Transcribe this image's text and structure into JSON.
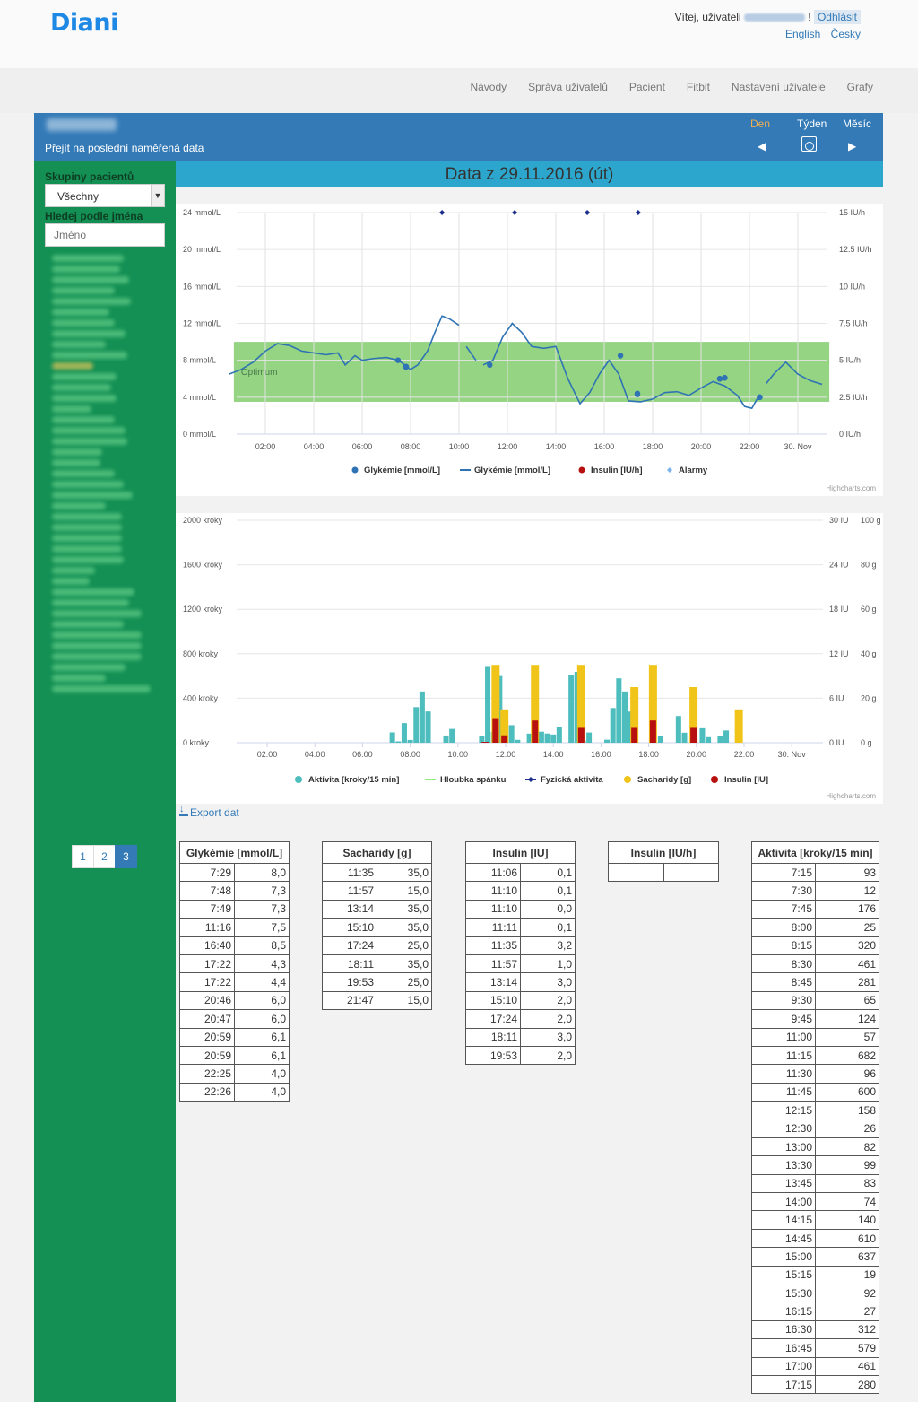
{
  "header": {
    "logo": "Diani",
    "welcome_prefix": "Vítej, uživateli",
    "welcome_suffix": "!",
    "logout": "Odhlásit",
    "lang_en": "English",
    "lang_cz": "Česky"
  },
  "nav": {
    "items": [
      "Návody",
      "Správa uživatelů",
      "Pacient",
      "Fitbit",
      "Nastavení uživatele",
      "Grafy"
    ]
  },
  "patient_bar": {
    "last_data_link": "Přejít na poslední naměřená data",
    "period_day": "Den",
    "period_week": "Týden",
    "period_month": "Měsíc",
    "prev_icon": "chevron-left-icon",
    "next_icon": "chevron-right-icon",
    "calendar_icon": "calendar-icon"
  },
  "sidebar": {
    "groups_label": "Skupiny pacientů",
    "groups_selected": "Všechny",
    "search_label": "Hledej podle jména",
    "search_placeholder": "Jméno",
    "pagination": [
      "1",
      "2",
      "3"
    ],
    "current_page": "3"
  },
  "main": {
    "date_title": "Data z 29.11.2016 (út)",
    "export_label": "Export dat",
    "credits": "Highcharts.com"
  },
  "chart_data": [
    {
      "type": "line",
      "x_ticks": [
        "02:00",
        "04:00",
        "06:00",
        "08:00",
        "10:00",
        "12:00",
        "14:00",
        "16:00",
        "18:00",
        "20:00",
        "22:00",
        "30. Nov"
      ],
      "y_left_ticks": [
        "0 mmol/L",
        "4 mmol/L",
        "8 mmol/L",
        "12 mmol/L",
        "16 mmol/L",
        "20 mmol/L",
        "24 mmol/L"
      ],
      "y_right_ticks": [
        "0 IU/h",
        "2.5 IU/h",
        "5 IU/h",
        "7.5 IU/h",
        "10 IU/h",
        "12.5 IU/h",
        "15 IU/h"
      ],
      "ylim_left": [
        0,
        24
      ],
      "ylim_right": [
        0,
        15
      ],
      "band": {
        "label": "Optimum",
        "from": 3.5,
        "to": 10,
        "color": "#8ed27c"
      },
      "legend": [
        "Glykémie [mmol/L]",
        "Glykémie [mmol/L]",
        "Insulin [IU/h]",
        "Alarmy"
      ],
      "series": [
        {
          "name": "Glykémie [mmol/L]",
          "kind": "points",
          "color": "#2f73b4",
          "x": [
            7.48,
            7.8,
            7.82,
            11.27,
            16.67,
            17.37,
            17.37,
            20.77,
            20.78,
            20.98,
            20.98,
            22.42,
            22.43
          ],
          "y": [
            8.0,
            7.3,
            7.3,
            7.5,
            8.5,
            4.3,
            4.4,
            6.0,
            6.0,
            6.1,
            6.1,
            4.0,
            4.0
          ]
        },
        {
          "name": "Glykémie [mmol/L]",
          "kind": "line",
          "color": "#2f73b4",
          "segments": [
            {
              "x": [
                0.5,
                1,
                1.5,
                2,
                2.5,
                3,
                3.5,
                4,
                4.5,
                5,
                5.3,
                5.7,
                6,
                6.5,
                7,
                7.5,
                8,
                8.3,
                8.7,
                9,
                9.3,
                9.6,
                10
              ],
              "y": [
                6.5,
                7.0,
                7.8,
                9.0,
                9.8,
                9.6,
                9.0,
                8.8,
                8.6,
                8.8,
                7.5,
                8.5,
                8.0,
                8.2,
                8.3,
                8.0,
                7.0,
                7.5,
                9.0,
                11.0,
                12.8,
                12.5,
                11.8
              ]
            },
            {
              "x": [
                10.3,
                10.7
              ],
              "y": [
                9.5,
                8.0
              ]
            },
            {
              "x": [
                11,
                11.4,
                11.8,
                12.2,
                12.6,
                13,
                13.5,
                14,
                14.5,
                15,
                15.4,
                15.8,
                16.2,
                16.6,
                17,
                17.5,
                18,
                18.5,
                19,
                19.5,
                20,
                20.5,
                21,
                21.5,
                21.8,
                22.1,
                22.4
              ],
              "y": [
                7.5,
                8.0,
                10.5,
                12.0,
                11.0,
                9.5,
                9.3,
                9.5,
                6.0,
                3.3,
                4.5,
                6.5,
                8.0,
                6.5,
                3.6,
                3.5,
                3.8,
                4.5,
                4.6,
                4.2,
                5.0,
                5.7,
                5.2,
                4.2,
                3.0,
                2.8,
                4.2
              ]
            },
            {
              "x": [
                22.7,
                23,
                23.5,
                24,
                24.5,
                25
              ],
              "y": [
                5.5,
                6.5,
                7.8,
                6.5,
                5.8,
                5.4
              ]
            }
          ]
        },
        {
          "name": "Alarmy",
          "kind": "markers",
          "color": "#1b2e8c",
          "x": [
            9.3,
            12.3,
            15.3,
            17.4
          ],
          "y": [
            24,
            24,
            24,
            24
          ]
        }
      ]
    },
    {
      "type": "bar",
      "x_ticks": [
        "02:00",
        "04:00",
        "06:00",
        "08:00",
        "10:00",
        "12:00",
        "14:00",
        "16:00",
        "18:00",
        "20:00",
        "22:00",
        "30. Nov"
      ],
      "y_left_ticks": [
        "0 kroky",
        "400 kroky",
        "800 kroky",
        "1200 kroky",
        "1600 kroky",
        "2000 kroky"
      ],
      "y_mid_ticks": [
        "0 IU",
        "6 IU",
        "12 IU",
        "18 IU",
        "24 IU",
        "30 IU"
      ],
      "y_right_ticks": [
        "0 g",
        "20 g",
        "40 g",
        "60 g",
        "80 g",
        "100 g"
      ],
      "ylim_left": [
        0,
        2000
      ],
      "ylim_mid": [
        0,
        30
      ],
      "ylim_right": [
        0,
        100
      ],
      "legend": [
        "Aktivita [kroky/15 min]",
        "Hloubka spánku",
        "Fyzická aktivita",
        "Sacharidy [g]",
        "Insulin [IU]"
      ],
      "series": [
        {
          "name": "Aktivita [kroky/15 min]",
          "color": "#4dbdbd",
          "x": [
            7.25,
            7.5,
            7.75,
            8.0,
            8.25,
            8.5,
            8.75,
            9.5,
            9.75,
            11.0,
            11.25,
            11.5,
            11.75,
            12.25,
            12.5,
            13.0,
            13.5,
            13.75,
            14.0,
            14.25,
            14.75,
            15.0,
            15.25,
            15.5,
            16.25,
            16.5,
            16.75,
            17.0,
            17.25,
            18.5,
            19.25,
            19.5,
            20.25,
            20.5,
            21.0,
            21.25
          ],
          "y": [
            93,
            12,
            176,
            25,
            320,
            461,
            281,
            65,
            124,
            57,
            682,
            96,
            600,
            158,
            26,
            82,
            99,
            83,
            74,
            140,
            610,
            637,
            19,
            92,
            27,
            312,
            579,
            461,
            280,
            60,
            240,
            90,
            130,
            50,
            60,
            110
          ]
        },
        {
          "name": "Sacharidy [g]",
          "color": "#f0c419",
          "x": [
            11.58,
            11.95,
            13.23,
            15.17,
            17.4,
            18.18,
            19.88,
            21.78
          ],
          "y": [
            35.0,
            15.0,
            35.0,
            35.0,
            25.0,
            35.0,
            25.0,
            15.0
          ]
        },
        {
          "name": "Insulin [IU]",
          "color": "#b80f0f",
          "x": [
            11.1,
            11.17,
            11.17,
            11.18,
            11.58,
            11.95,
            13.23,
            15.17,
            17.4,
            18.18,
            19.88
          ],
          "y": [
            0.1,
            0.1,
            0.0,
            0.1,
            3.2,
            1.0,
            3.0,
            2.0,
            2.0,
            3.0,
            2.0
          ]
        }
      ]
    }
  ],
  "tables": {
    "glykemie": {
      "header": "Glykémie [mmol/L]",
      "rows": [
        [
          "7:29",
          "8,0"
        ],
        [
          "7:48",
          "7,3"
        ],
        [
          "7:49",
          "7,3"
        ],
        [
          "11:16",
          "7,5"
        ],
        [
          "16:40",
          "8,5"
        ],
        [
          "17:22",
          "4,3"
        ],
        [
          "17:22",
          "4,4"
        ],
        [
          "20:46",
          "6,0"
        ],
        [
          "20:47",
          "6,0"
        ],
        [
          "20:59",
          "6,1"
        ],
        [
          "20:59",
          "6,1"
        ],
        [
          "22:25",
          "4,0"
        ],
        [
          "22:26",
          "4,0"
        ]
      ]
    },
    "sacharidy": {
      "header": "Sacharidy [g]",
      "rows": [
        [
          "11:35",
          "35,0"
        ],
        [
          "11:57",
          "15,0"
        ],
        [
          "13:14",
          "35,0"
        ],
        [
          "15:10",
          "35,0"
        ],
        [
          "17:24",
          "25,0"
        ],
        [
          "18:11",
          "35,0"
        ],
        [
          "19:53",
          "25,0"
        ],
        [
          "21:47",
          "15,0"
        ]
      ]
    },
    "insulin": {
      "header": "Insulin [IU]",
      "rows": [
        [
          "11:06",
          "0,1"
        ],
        [
          "11:10",
          "0,1"
        ],
        [
          "11:10",
          "0,0"
        ],
        [
          "11:11",
          "0,1"
        ],
        [
          "11:35",
          "3,2"
        ],
        [
          "11:57",
          "1,0"
        ],
        [
          "13:14",
          "3,0"
        ],
        [
          "15:10",
          "2,0"
        ],
        [
          "17:24",
          "2,0"
        ],
        [
          "18:11",
          "3,0"
        ],
        [
          "19:53",
          "2,0"
        ]
      ]
    },
    "insulin_h": {
      "header": "Insulin [IU/h]",
      "rows": [
        [
          "",
          ""
        ]
      ]
    },
    "aktivita": {
      "header": "Aktivita [kroky/15 min]",
      "rows": [
        [
          "7:15",
          "93"
        ],
        [
          "7:30",
          "12"
        ],
        [
          "7:45",
          "176"
        ],
        [
          "8:00",
          "25"
        ],
        [
          "8:15",
          "320"
        ],
        [
          "8:30",
          "461"
        ],
        [
          "8:45",
          "281"
        ],
        [
          "9:30",
          "65"
        ],
        [
          "9:45",
          "124"
        ],
        [
          "11:00",
          "57"
        ],
        [
          "11:15",
          "682"
        ],
        [
          "11:30",
          "96"
        ],
        [
          "11:45",
          "600"
        ],
        [
          "12:15",
          "158"
        ],
        [
          "12:30",
          "26"
        ],
        [
          "13:00",
          "82"
        ],
        [
          "13:30",
          "99"
        ],
        [
          "13:45",
          "83"
        ],
        [
          "14:00",
          "74"
        ],
        [
          "14:15",
          "140"
        ],
        [
          "14:45",
          "610"
        ],
        [
          "15:00",
          "637"
        ],
        [
          "15:15",
          "19"
        ],
        [
          "15:30",
          "92"
        ],
        [
          "16:15",
          "27"
        ],
        [
          "16:30",
          "312"
        ],
        [
          "16:45",
          "579"
        ],
        [
          "17:00",
          "461"
        ],
        [
          "17:15",
          "280"
        ]
      ]
    }
  }
}
